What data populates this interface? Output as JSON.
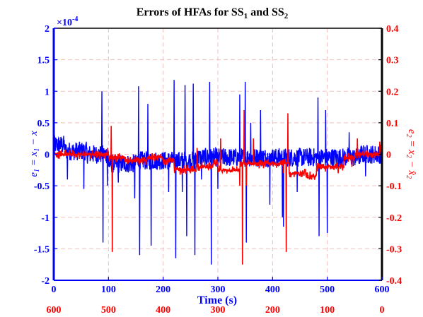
{
  "chart_data": {
    "type": "line",
    "title": {
      "text": "Errors of HFAs for SS",
      "sub1": "1",
      "mid": " and SS",
      "sub2": "2"
    },
    "xlabel": "Time (s)",
    "ylabel_left": {
      "e": "e",
      "sub1": "1",
      "eq": " = x",
      "sub2": "1",
      "tail": " − x"
    },
    "ylabel_right": {
      "e": "e",
      "sub1": "2",
      "eq": " = x",
      "sub2": "2",
      "tail": " − x̂",
      "sub3": "2"
    },
    "exponent_label": {
      "base": "×10",
      "power": "-4"
    },
    "xlim": [
      0,
      600
    ],
    "ylim_left": [
      -2,
      2
    ],
    "ylim_right": [
      -0.4,
      0.4
    ],
    "x_ticks": [
      "0",
      "100",
      "200",
      "300",
      "400",
      "500",
      "600"
    ],
    "x_ticks_secondary": [
      "600",
      "500",
      "400",
      "300",
      "200",
      "100",
      "0"
    ],
    "y_ticks_left": [
      "2",
      "1.5",
      "1",
      "0.5",
      "0",
      "-0.5",
      "-1",
      "-1.5",
      "-2"
    ],
    "y_ticks_right": [
      "0.4",
      "0.3",
      "0.2",
      "0.1",
      "0",
      "-0.1",
      "-0.2",
      "-0.3",
      "-0.4"
    ],
    "grid": true,
    "colors": {
      "series1": "#0000ff",
      "series2": "#ff0000",
      "grid": "#f0c0c0"
    },
    "series": [
      {
        "axis": "left",
        "baseline_segments": [
          [
            0,
            0.15
          ],
          [
            20,
            0.05
          ],
          [
            60,
            0.0
          ],
          [
            100,
            -0.15
          ],
          [
            150,
            -0.1
          ],
          [
            200,
            -0.1
          ],
          [
            260,
            -0.05
          ],
          [
            300,
            -0.05
          ],
          [
            400,
            -0.05
          ],
          [
            500,
            -0.05
          ],
          [
            560,
            0.0
          ],
          [
            600,
            0.0
          ]
        ],
        "noise_amplitude": 0.15,
        "spikes": [
          [
            15,
            0.25
          ],
          [
            25,
            -0.4
          ],
          [
            55,
            -0.55
          ],
          [
            88,
            1.0
          ],
          [
            90,
            -1.4
          ],
          [
            98,
            -0.5
          ],
          [
            118,
            -0.45
          ],
          [
            148,
            -0.7
          ],
          [
            155,
            1.08
          ],
          [
            157,
            -1.6
          ],
          [
            172,
            0.8
          ],
          [
            178,
            -1.45
          ],
          [
            210,
            -0.6
          ],
          [
            220,
            1.18
          ],
          [
            223,
            -1.65
          ],
          [
            235,
            -0.6
          ],
          [
            240,
            1.1
          ],
          [
            243,
            -1.3
          ],
          [
            255,
            1.12
          ],
          [
            258,
            -1.6
          ],
          [
            270,
            -0.4
          ],
          [
            285,
            1.15
          ],
          [
            288,
            -1.75
          ],
          [
            300,
            -0.55
          ],
          [
            340,
            0.95
          ],
          [
            350,
            1.15
          ],
          [
            352,
            -1.4
          ],
          [
            360,
            0.5
          ],
          [
            378,
            0.7
          ],
          [
            395,
            -0.8
          ],
          [
            418,
            -1.0
          ],
          [
            420,
            -1.15
          ],
          [
            445,
            -0.6
          ],
          [
            483,
            0.9
          ],
          [
            485,
            -1.3
          ],
          [
            497,
            0.7
          ],
          [
            500,
            -1.25
          ],
          [
            520,
            -0.3
          ],
          [
            540,
            0.35
          ],
          [
            570,
            -0.35
          ]
        ]
      },
      {
        "axis": "right",
        "baseline_segments": [
          [
            0,
            0.0
          ],
          [
            55,
            0.0
          ],
          [
            95,
            0.0
          ],
          [
            100,
            -0.01
          ],
          [
            130,
            -0.02
          ],
          [
            170,
            -0.01
          ],
          [
            200,
            -0.02
          ],
          [
            215,
            -0.02
          ],
          [
            220,
            -0.05
          ],
          [
            260,
            -0.04
          ],
          [
            290,
            -0.03
          ],
          [
            300,
            -0.05
          ],
          [
            340,
            -0.03
          ],
          [
            380,
            -0.03
          ],
          [
            400,
            -0.03
          ],
          [
            430,
            -0.06
          ],
          [
            460,
            -0.07
          ],
          [
            480,
            -0.04
          ],
          [
            520,
            -0.04
          ],
          [
            530,
            -0.01
          ],
          [
            550,
            0.0
          ],
          [
            590,
            0.0
          ],
          [
            595,
            0.01
          ],
          [
            600,
            0.01
          ]
        ],
        "noise_amplitude": 0.01,
        "spikes": [
          [
            20,
            0.01
          ],
          [
            98,
            0.02
          ],
          [
            105,
            0.09
          ],
          [
            107,
            -0.31
          ],
          [
            190,
            -0.02
          ],
          [
            262,
            0.02
          ],
          [
            305,
            0.05
          ],
          [
            340,
            -0.1
          ],
          [
            345,
            -0.35
          ],
          [
            348,
            0.14
          ],
          [
            352,
            -0.1
          ],
          [
            365,
            0.05
          ],
          [
            420,
            -0.06
          ],
          [
            425,
            -0.31
          ],
          [
            428,
            0.13
          ],
          [
            468,
            -0.07
          ],
          [
            520,
            -0.06
          ],
          [
            545,
            -0.04
          ],
          [
            555,
            0.05
          ],
          [
            596,
            0.04
          ],
          [
            598,
            0.03
          ]
        ]
      }
    ]
  }
}
